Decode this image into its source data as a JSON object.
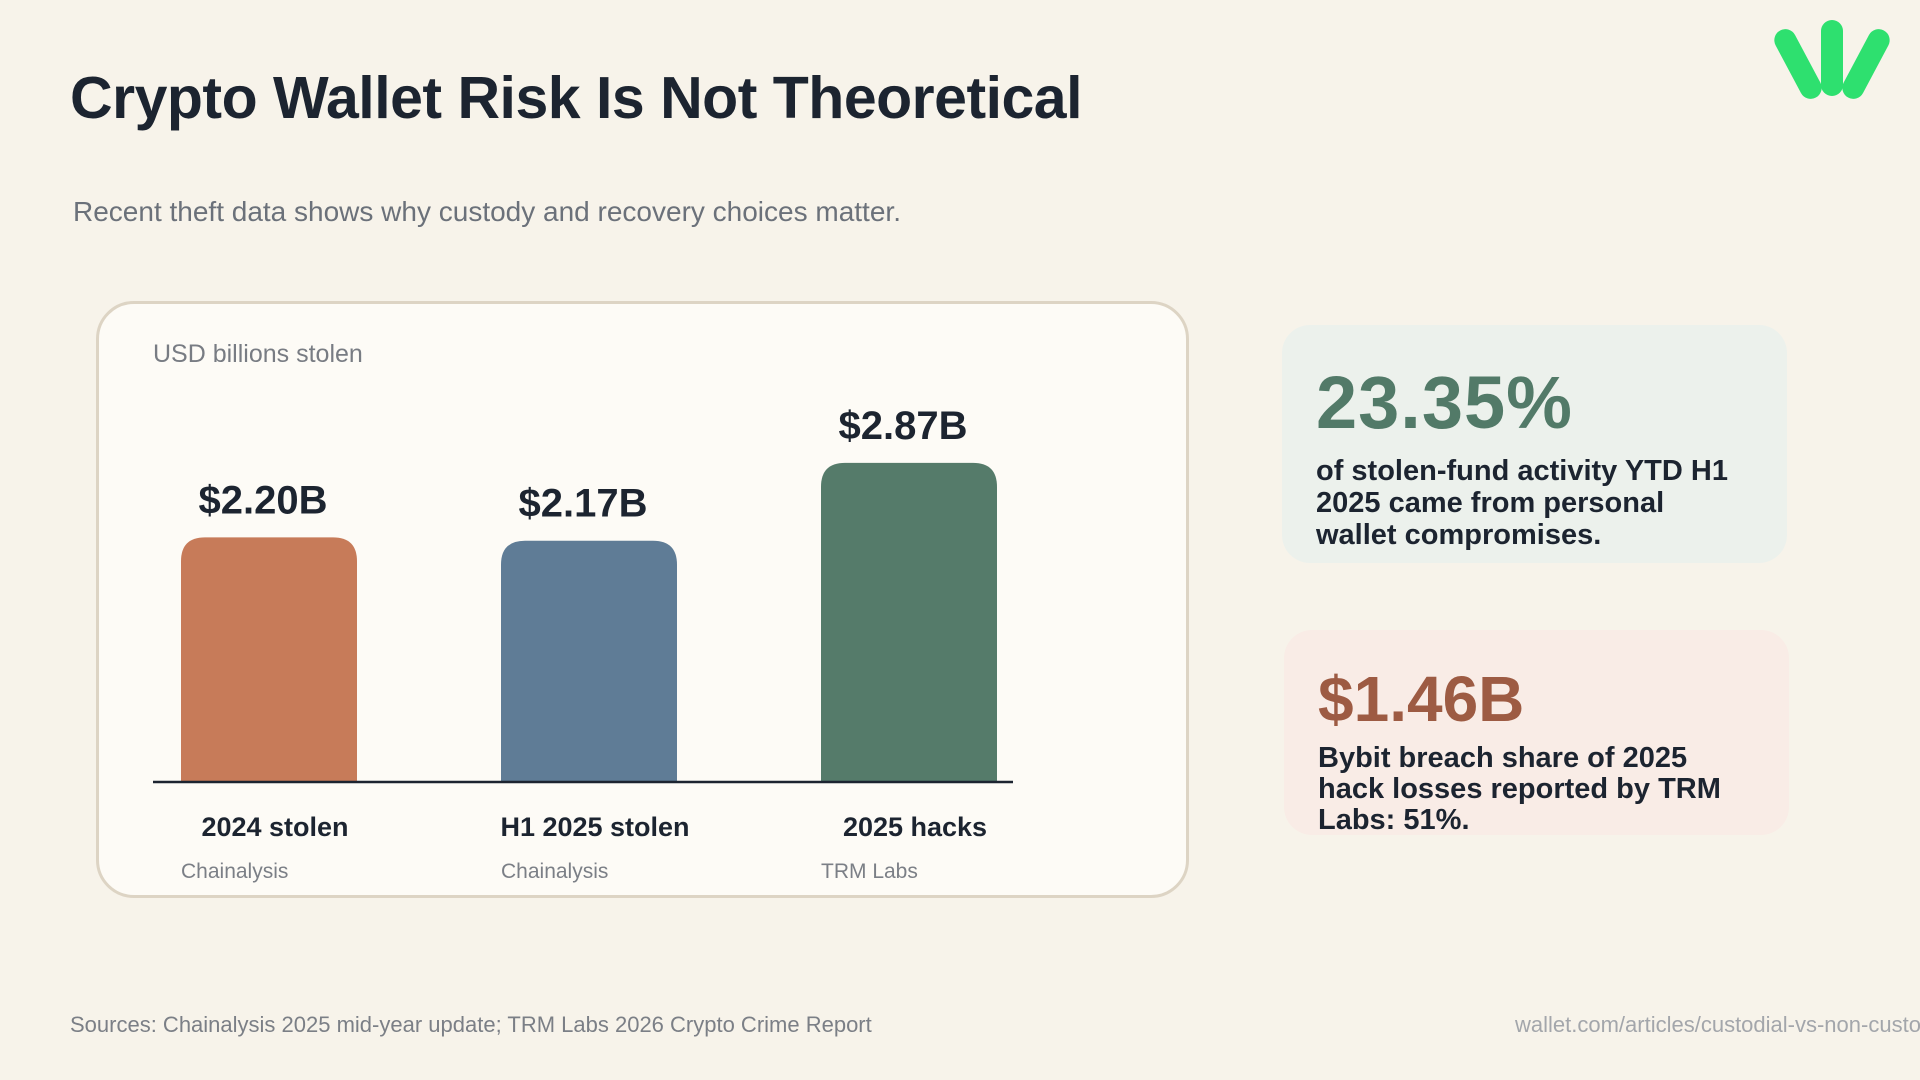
{
  "title": "Crypto Wallet Risk Is Not Theoretical",
  "subtitle": "Recent theft data shows why custody and recovery choices matter.",
  "logo": {
    "icon": "leaf-sprout-logo",
    "color": "#2ee06f"
  },
  "chart_data": {
    "type": "bar",
    "ylabel": "USD billions stolen",
    "categories": [
      "2024 stolen",
      "H1 2025 stolen",
      "2025 hacks"
    ],
    "values": [
      2.2,
      2.17,
      2.87
    ],
    "value_labels": [
      "$2.20B",
      "$2.17B",
      "$2.87B"
    ],
    "sources": [
      "Chainalysis",
      "Chainalysis",
      "TRM Labs"
    ],
    "colors": [
      "#c77b59",
      "#5f7c96",
      "#557b6a"
    ],
    "ylim": [
      0,
      3.4
    ],
    "grid": false
  },
  "stats": [
    {
      "value": "23.35%",
      "description": "of stolen-fund activity YTD H1 2025 came from personal wallet compromises.",
      "color": "#527a68"
    },
    {
      "value": "$1.46B",
      "description": "Bybit breach share of 2025 hack losses reported by TRM Labs: 51%.",
      "color": "#9d5b43"
    }
  ],
  "footer": {
    "sources": "Sources: Chainalysis 2025 mid-year update; TRM Labs 2026 Crypto Crime Report",
    "url": "wallet.com/articles/custodial-vs-non-custodial-wallets"
  }
}
